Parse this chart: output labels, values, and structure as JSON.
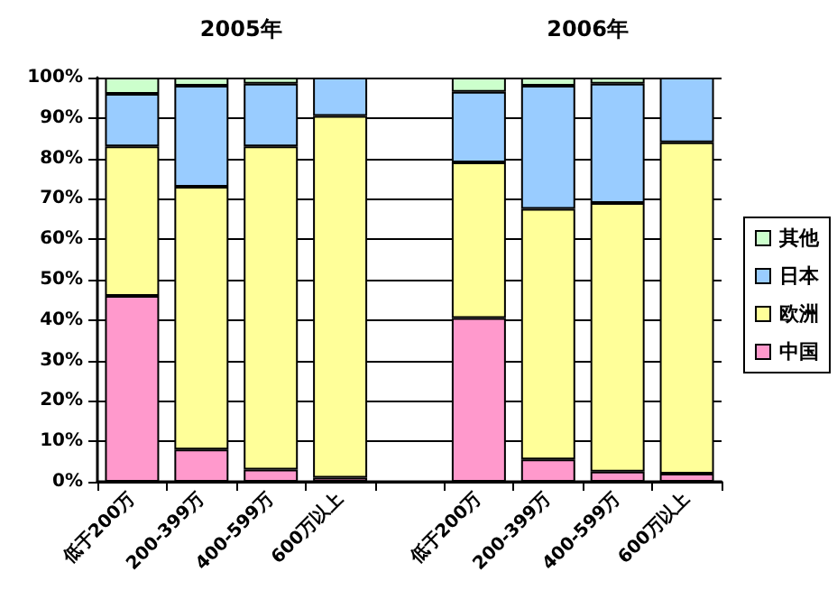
{
  "chart_data": {
    "type": "bar",
    "stacked": true,
    "categories": [
      "低于200万",
      "200-399万",
      "400-599万",
      "600万以上",
      null,
      "低于200万",
      "200-399万",
      "400-599万",
      "600万以上"
    ],
    "series": [
      {
        "name": "中国",
        "color": "#ff99cc",
        "values": [
          46,
          8,
          3,
          1,
          null,
          40.5,
          5.5,
          2.5,
          2
        ]
      },
      {
        "name": "欧洲",
        "color": "#ffff99",
        "values": [
          37,
          65,
          80,
          89.5,
          null,
          38.5,
          62,
          66.5,
          82
        ]
      },
      {
        "name": "日本",
        "color": "#99ccff",
        "values": [
          13,
          25,
          15.5,
          9.5,
          null,
          17.5,
          30.5,
          29.5,
          16
        ]
      },
      {
        "name": "其他",
        "color": "#ccffcc",
        "values": [
          4,
          2,
          1.5,
          0,
          null,
          3.5,
          2,
          1.5,
          0
        ]
      }
    ],
    "ylim": [
      0,
      100
    ],
    "yticks": [
      {
        "value": 0,
        "label": "0%"
      },
      {
        "value": 10,
        "label": "10%"
      },
      {
        "value": 20,
        "label": "20%"
      },
      {
        "value": 30,
        "label": "30%"
      },
      {
        "value": 40,
        "label": "40%"
      },
      {
        "value": 50,
        "label": "50%"
      },
      {
        "value": 60,
        "label": "60%"
      },
      {
        "value": 70,
        "label": "70%"
      },
      {
        "value": 80,
        "label": "80%"
      },
      {
        "value": 90,
        "label": "90%"
      },
      {
        "value": 100,
        "label": "100%"
      }
    ],
    "grid": "y",
    "legend": "right",
    "annotations": [
      "2005年",
      "2006年"
    ]
  }
}
